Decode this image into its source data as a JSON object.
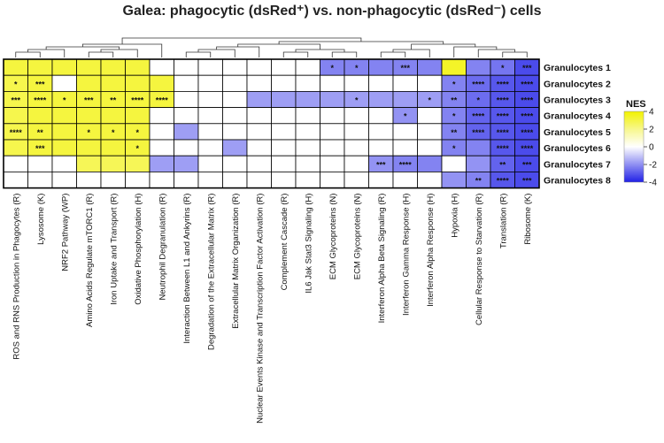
{
  "chart_data": {
    "type": "heatmap",
    "title": "Galea: phagocytic (dsRed⁺) vs. non-phagocytic (dsRed⁻) cells",
    "rows": [
      "Granulocytes 1",
      "Granulocytes 2",
      "Granulocytes 3",
      "Granulocytes 4",
      "Granulocytes 5",
      "Granulocytes 6",
      "Granulocytes 7",
      "Granulocytes 8"
    ],
    "columns": [
      "ROS and RNS Production in Phagocytes (R)",
      "Lysosome (K)",
      "NRF2 Pathway (WP)",
      "Amino Acids Regulate mTORC1 (R)",
      "Iron Uptake and Transport (R)",
      "Oxidative Phosphorylation (H)",
      "Neutrophil Degranulation (R)",
      "Interaction Between L1 and Ankyrins (R)",
      "Degradation of the Extracellular Matrix (R)",
      "Extracellular Matrix Organization (R)",
      "Nuclear Events Kinase and Transcription Factor Activation (R)",
      "Complement Cascade (R)",
      "IL6 Jak Stat3 Signaling (H)",
      "ECM Glycoproteins (N)",
      "ECM Glycoproteins (N)",
      "Interferon Alpha Beta Signaling (R)",
      "Interferon Gamma Response (H)",
      "Interferon Alpha Response (H)",
      "Hypoxia (H)",
      "Cellular Response to Starvation (R)",
      "Translation (R)",
      "Ribosome (K)"
    ],
    "values": [
      [
        2.5,
        2.5,
        2.5,
        2.5,
        2.5,
        2.5,
        0,
        0,
        0,
        0,
        0,
        0,
        0,
        -1.5,
        -1.5,
        -1.5,
        -1.5,
        -1.5,
        3,
        -1.5,
        -1.8,
        -2.8
      ],
      [
        2.2,
        2.5,
        0,
        2.5,
        2.5,
        2.5,
        2.5,
        0,
        0,
        0,
        0,
        0,
        0,
        0,
        0,
        0,
        0,
        0,
        -1.5,
        -2,
        -2.5,
        -2.8
      ],
      [
        2.2,
        2.5,
        2.5,
        2.5,
        2.5,
        2.5,
        2.5,
        0,
        0,
        0,
        -1,
        -1,
        -1,
        -1,
        -1,
        -1,
        -1,
        -1,
        -1.5,
        -2,
        -2.5,
        -2.8
      ],
      [
        2.2,
        2.5,
        2.5,
        2.5,
        2.5,
        2.5,
        0,
        0,
        0,
        0,
        0,
        0,
        0,
        0,
        0,
        0,
        -1.2,
        0,
        -1.5,
        -2.2,
        -2.5,
        -2.8
      ],
      [
        2.2,
        2.5,
        2.5,
        2.5,
        2.5,
        2.5,
        0,
        -1,
        0,
        0,
        0,
        0,
        0,
        0,
        0,
        0,
        0,
        0,
        -1.5,
        -2.2,
        -2.5,
        -2.8
      ],
      [
        2.2,
        2.5,
        2.5,
        2.5,
        2.5,
        2.5,
        0,
        0,
        0,
        -1,
        0,
        0,
        0,
        0,
        0,
        0,
        0,
        0,
        -1.5,
        -1.5,
        -2.5,
        -2.8
      ],
      [
        0,
        0,
        0,
        2,
        2,
        2,
        -1,
        -1,
        0,
        0,
        0,
        0,
        0,
        0,
        0,
        -1.2,
        -1.5,
        -1.5,
        0,
        -1.2,
        -2.2,
        -2.8
      ],
      [
        0,
        0,
        0,
        0,
        0,
        0,
        0,
        0,
        0,
        0,
        0,
        0,
        0,
        0,
        0,
        0,
        0,
        0,
        -1.2,
        -1.5,
        -2.5,
        -2.8
      ]
    ],
    "significance": [
      [
        "",
        "",
        "",
        "",
        "",
        "",
        "",
        "",
        "",
        "",
        "",
        "",
        "",
        "*",
        "*",
        "",
        "***",
        "",
        "",
        "",
        "*",
        "***"
      ],
      [
        "*",
        "***",
        "",
        "",
        "",
        "",
        "",
        "",
        "",
        "",
        "",
        "",
        "",
        "",
        "",
        "",
        "",
        "",
        "*",
        "****",
        "****",
        "****"
      ],
      [
        "***",
        "****",
        "*",
        "***",
        "**",
        "****",
        "****",
        "",
        "",
        "",
        "",
        "",
        "",
        "",
        "*",
        "",
        "",
        "*",
        "**",
        "*",
        "****",
        "****"
      ],
      [
        "",
        "",
        "",
        "",
        "",
        "",
        "",
        "",
        "",
        "",
        "",
        "",
        "",
        "",
        "",
        "",
        "*",
        "",
        "*",
        "****",
        "****",
        "****"
      ],
      [
        "****",
        "**",
        "",
        "*",
        "*",
        "*",
        "",
        "",
        "",
        "",
        "",
        "",
        "",
        "",
        "",
        "",
        "",
        "",
        "**",
        "****",
        "****",
        "****"
      ],
      [
        "",
        "***",
        "",
        "",
        "",
        "*",
        "",
        "",
        "",
        "",
        "",
        "",
        "",
        "",
        "",
        "",
        "",
        "",
        "*",
        "",
        "****",
        "****"
      ],
      [
        "",
        "",
        "",
        "",
        "",
        "",
        "",
        "",
        "",
        "",
        "",
        "",
        "",
        "",
        "",
        "***",
        "****",
        "",
        "",
        "",
        "**",
        "***"
      ],
      [
        "",
        "",
        "",
        "",
        "",
        "",
        "",
        "",
        "",
        "",
        "",
        "",
        "",
        "",
        "",
        "",
        "",
        "",
        "",
        "**",
        "****",
        "***"
      ]
    ],
    "legend": {
      "title": "NES",
      "ticks": [
        4,
        2,
        0,
        -2,
        -4
      ],
      "range": [
        -4,
        4
      ],
      "colors": {
        "high": "#f2f200",
        "mid": "#ffffff",
        "low": "#2020e6"
      }
    },
    "dendrogram": true
  }
}
